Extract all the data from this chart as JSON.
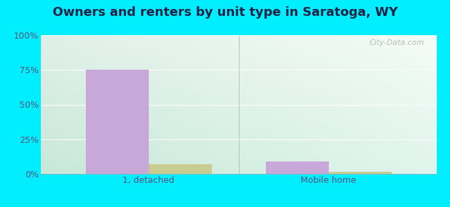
{
  "title": "Owners and renters by unit type in Saratoga, WY",
  "categories": [
    "1, detached",
    "Mobile home"
  ],
  "owner_values": [
    75.0,
    9.0
  ],
  "renter_values": [
    7.0,
    1.5
  ],
  "owner_color": "#c8a8d8",
  "renter_color": "#c8cc90",
  "bar_width": 0.35,
  "ylim": [
    0,
    100
  ],
  "yticks": [
    0,
    25,
    50,
    75,
    100
  ],
  "ytick_labels": [
    "0%",
    "25%",
    "50%",
    "75%",
    "100%"
  ],
  "title_fontsize": 13,
  "tick_fontsize": 9,
  "legend_fontsize": 9,
  "outer_color": "#00eeff",
  "watermark": "City-Data.com",
  "bg_gradient_topleft": "#e0f0e8",
  "bg_gradient_topright": "#f0f8f4",
  "bg_gradient_bottomleft": "#c8e8d8",
  "bg_gradient_bottomright": "#e8f4ee"
}
